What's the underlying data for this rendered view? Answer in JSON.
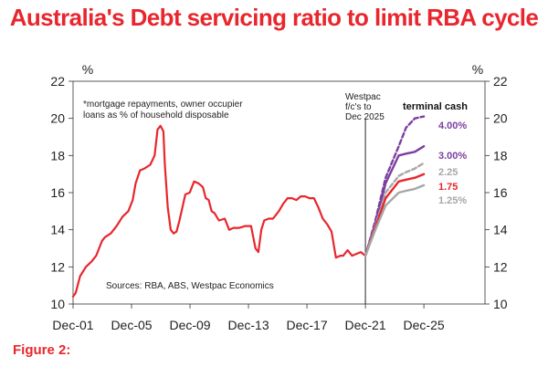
{
  "headline": "Australia's Debt servicing ratio to limit RBA cycle",
  "figure_label": "Figure 2:",
  "colors": {
    "title": "#e8262d",
    "history": "#e8262d",
    "s_4_00": "#7b3fa0",
    "s_3_00": "#7b3fa0",
    "s_2_25": "#a7a7a7",
    "s_1_75": "#e8262d",
    "s_1_25": "#a7a7a7"
  },
  "chart_data": {
    "type": "line",
    "title": "Australia's Debt servicing ratio to limit RBA cycle",
    "unit_left": "%",
    "unit_right": "%",
    "ylim": [
      10,
      22
    ],
    "y_ticks": [
      10,
      12,
      14,
      16,
      18,
      20,
      22
    ],
    "xlim": [
      2001.92,
      2030.1
    ],
    "x_ticks": [
      {
        "label": "Dec-01",
        "value": 2001.92
      },
      {
        "label": "Dec-05",
        "value": 2005.92
      },
      {
        "label": "Dec-09",
        "value": 2009.92
      },
      {
        "label": "Dec-13",
        "value": 2013.92
      },
      {
        "label": "Dec-17",
        "value": 2017.92
      },
      {
        "label": "Dec-21",
        "value": 2021.92
      },
      {
        "label": "Dec-25",
        "value": 2025.92
      }
    ],
    "note_lines": [
      "*mortgage repayments, owner occupier",
      "loans as % of household disposable"
    ],
    "source": "Sources: RBA, ABS, Westpac Economics",
    "forecast_marker": {
      "x": 2021.92,
      "lines": [
        "Westpac",
        "f/c's to",
        "Dec 2025"
      ]
    },
    "legend_title": "terminal cash",
    "history": {
      "name": "Debt servicing ratio",
      "x": [
        2001.92,
        2002.1,
        2002.4,
        2002.8,
        2003.2,
        2003.5,
        2003.9,
        2004.1,
        2004.5,
        2004.9,
        2005.3,
        2005.7,
        2006.0,
        2006.2,
        2006.5,
        2006.8,
        2007.2,
        2007.5,
        2007.7,
        2007.9,
        2008.1,
        2008.2,
        2008.4,
        2008.6,
        2008.8,
        2009.0,
        2009.2,
        2009.4,
        2009.6,
        2009.9,
        2010.2,
        2010.5,
        2010.8,
        2011.0,
        2011.2,
        2011.4,
        2011.6,
        2011.9,
        2012.3,
        2012.6,
        2012.9,
        2013.3,
        2013.7,
        2014.1,
        2014.4,
        2014.6,
        2014.8,
        2015.0,
        2015.3,
        2015.6,
        2016.0,
        2016.3,
        2016.6,
        2016.9,
        2017.2,
        2017.5,
        2017.8,
        2018.1,
        2018.4,
        2018.7,
        2019.0,
        2019.3,
        2019.6,
        2019.9,
        2020.2,
        2020.4,
        2020.7,
        2021.0,
        2021.3,
        2021.6,
        2021.92
      ],
      "values": [
        10.4,
        10.6,
        11.5,
        12.0,
        12.3,
        12.6,
        13.4,
        13.6,
        13.8,
        14.2,
        14.7,
        15.0,
        15.6,
        16.5,
        17.2,
        17.3,
        17.5,
        18.0,
        19.4,
        19.6,
        19.3,
        17.5,
        15.2,
        14.0,
        13.8,
        13.9,
        14.5,
        15.2,
        15.9,
        16.0,
        16.6,
        16.5,
        16.3,
        15.7,
        15.6,
        15.0,
        14.9,
        14.5,
        14.6,
        14.0,
        14.1,
        14.1,
        14.2,
        14.2,
        13.0,
        12.8,
        14.0,
        14.5,
        14.6,
        14.6,
        15.0,
        15.4,
        15.7,
        15.7,
        15.6,
        15.8,
        15.8,
        15.7,
        15.7,
        15.2,
        14.6,
        14.3,
        13.9,
        12.5,
        12.6,
        12.6,
        12.9,
        12.6,
        12.7,
        12.8,
        12.6
      ]
    },
    "series": [
      {
        "name": "4.00%",
        "dashed": true,
        "x": [
          2021.92,
          2022.6,
          2023.3,
          2024.2,
          2024.7,
          2025.3,
          2025.92
        ],
        "values": [
          12.6,
          14.5,
          16.8,
          18.5,
          19.5,
          20.0,
          20.1
        ]
      },
      {
        "name": "3.00%",
        "dashed": false,
        "x": [
          2021.92,
          2022.6,
          2023.3,
          2024.2,
          2024.7,
          2025.3,
          2025.92
        ],
        "values": [
          12.6,
          14.3,
          16.5,
          18.0,
          18.1,
          18.2,
          18.5
        ]
      },
      {
        "name": "2.25",
        "dashed": true,
        "x": [
          2021.92,
          2022.6,
          2023.3,
          2024.2,
          2024.7,
          2025.3,
          2025.92
        ],
        "values": [
          12.6,
          14.2,
          16.0,
          16.9,
          17.1,
          17.3,
          17.6
        ]
      },
      {
        "name": "1.75",
        "dashed": false,
        "x": [
          2021.92,
          2022.6,
          2023.3,
          2024.2,
          2024.7,
          2025.3,
          2025.92
        ],
        "values": [
          12.6,
          14.1,
          15.7,
          16.6,
          16.7,
          16.8,
          17.0
        ]
      },
      {
        "name": "1.25%",
        "dashed": false,
        "x": [
          2021.92,
          2022.6,
          2023.3,
          2024.2,
          2024.7,
          2025.3,
          2025.92
        ],
        "values": [
          12.6,
          14.0,
          15.3,
          16.0,
          16.1,
          16.2,
          16.4
        ]
      }
    ]
  }
}
